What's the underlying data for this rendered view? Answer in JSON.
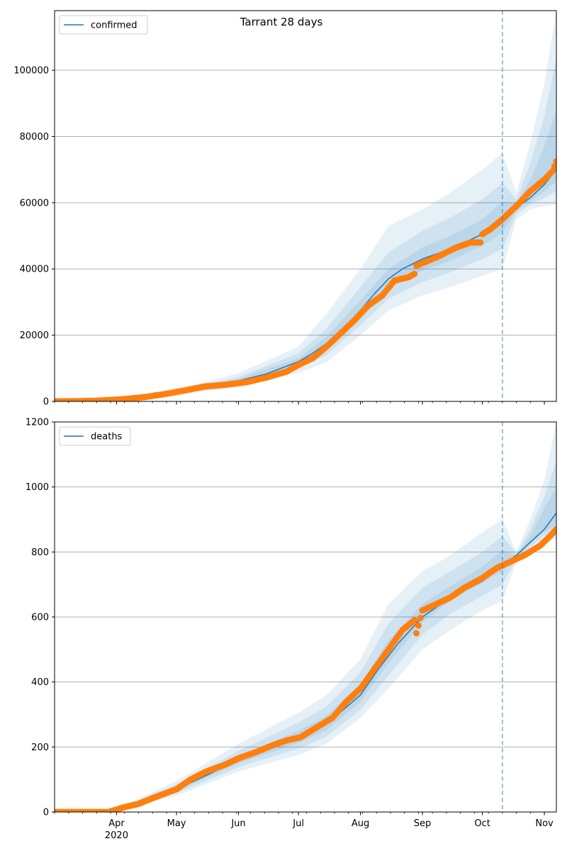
{
  "figure_title": "Tarrant 28 days",
  "chart_data": [
    {
      "type": "line",
      "name": "confirmed-panel",
      "legend": [
        "confirmed"
      ],
      "legend_position": "top-left",
      "grid": "horizontal",
      "ylim": [
        0,
        118000
      ],
      "yticks": [
        0,
        20000,
        40000,
        60000,
        80000,
        100000
      ],
      "xlim": [
        "2020-03-01",
        "2020-11-07"
      ],
      "forecast_start": "2020-10-11",
      "colors": {
        "model": "#1f77b4",
        "observed": "#ff7f0e",
        "band": "#1f77b4"
      },
      "model_line": {
        "name": "confirmed",
        "x": [
          "2020-03-01",
          "2020-03-20",
          "2020-04-01",
          "2020-04-15",
          "2020-05-01",
          "2020-05-15",
          "2020-06-01",
          "2020-06-15",
          "2020-07-01",
          "2020-07-08",
          "2020-07-15",
          "2020-07-22",
          "2020-08-01",
          "2020-08-08",
          "2020-08-15",
          "2020-08-22",
          "2020-09-01",
          "2020-09-15",
          "2020-10-01",
          "2020-10-11",
          "2020-10-18",
          "2020-10-25",
          "2020-11-01",
          "2020-11-07"
        ],
        "y": [
          0,
          100,
          400,
          1200,
          2500,
          4200,
          6200,
          8300,
          12000,
          14500,
          17500,
          21000,
          27500,
          32500,
          37000,
          40000,
          43000,
          46000,
          50500,
          55500,
          58500,
          61500,
          65500,
          70000
        ]
      },
      "observed_points": {
        "x": [
          "2020-03-01",
          "2020-03-10",
          "2020-03-20",
          "2020-03-28",
          "2020-04-05",
          "2020-04-15",
          "2020-04-25",
          "2020-05-05",
          "2020-05-15",
          "2020-05-25",
          "2020-06-05",
          "2020-06-15",
          "2020-06-25",
          "2020-07-01",
          "2020-07-08",
          "2020-07-15",
          "2020-07-22",
          "2020-07-29",
          "2020-08-05",
          "2020-08-12",
          "2020-08-18",
          "2020-08-25",
          "2020-08-28",
          "2020-08-29",
          "2020-09-08",
          "2020-09-18",
          "2020-09-25",
          "2020-09-30",
          "2020-10-01",
          "2020-10-05",
          "2020-10-11",
          "2020-10-18",
          "2020-10-25",
          "2020-11-01",
          "2020-11-05",
          "2020-11-07"
        ],
        "y": [
          0,
          50,
          150,
          400,
          700,
          1300,
          2200,
          3300,
          4500,
          5000,
          5800,
          7200,
          9000,
          11000,
          13000,
          16500,
          20500,
          24500,
          29000,
          32000,
          36500,
          37500,
          38500,
          41000,
          43500,
          46500,
          48000,
          48000,
          50500,
          52000,
          55000,
          59000,
          63500,
          67000,
          69500,
          72500
        ]
      },
      "bands": {
        "x": [
          "2020-03-01",
          "2020-04-01",
          "2020-05-01",
          "2020-06-01",
          "2020-07-01",
          "2020-07-15",
          "2020-08-01",
          "2020-08-15",
          "2020-09-01",
          "2020-09-15",
          "2020-10-01",
          "2020-10-11",
          "2020-10-18",
          "2020-10-25",
          "2020-11-01",
          "2020-11-07"
        ],
        "outer_low": [
          0,
          250,
          1800,
          4400,
          8600,
          11800,
          20000,
          27500,
          32000,
          34500,
          38000,
          40000,
          55000,
          58000,
          59000,
          59500
        ],
        "outer_high": [
          200,
          700,
          3500,
          8500,
          16500,
          26500,
          40000,
          53000,
          58000,
          63000,
          70000,
          75000,
          63000,
          78000,
          96000,
          118000
        ],
        "middle_low": [
          0,
          300,
          2000,
          5100,
          10000,
          14000,
          23000,
          31000,
          36000,
          39000,
          43000,
          46000,
          56500,
          59500,
          61500,
          63500
        ],
        "middle_high": [
          150,
          550,
          3000,
          7400,
          14500,
          22000,
          34500,
          45000,
          51500,
          55500,
          61000,
          66000,
          61000,
          72000,
          86000,
          104000
        ],
        "inner_low": [
          0,
          350,
          2200,
          5700,
          11000,
          16000,
          25500,
          34000,
          39500,
          42500,
          47000,
          51000,
          57500,
          60500,
          63500,
          66500
        ],
        "inner_high": [
          100,
          450,
          2800,
          6800,
          13000,
          19500,
          30500,
          40000,
          46500,
          50000,
          55000,
          60500,
          60000,
          67000,
          77000,
          88000
        ]
      }
    },
    {
      "type": "line",
      "name": "deaths-panel",
      "legend": [
        "deaths"
      ],
      "legend_position": "top-left",
      "grid": "horizontal",
      "ylim": [
        0,
        1200
      ],
      "yticks": [
        0,
        200,
        400,
        600,
        800,
        1000,
        1200
      ],
      "xlim": [
        "2020-03-01",
        "2020-11-07"
      ],
      "xticks": [
        "2020-04-01",
        "2020-05-01",
        "2020-06-01",
        "2020-07-01",
        "2020-08-01",
        "2020-09-01",
        "2020-10-01",
        "2020-11-01"
      ],
      "xtick_labels": [
        "Apr",
        "May",
        "Jun",
        "Jul",
        "Aug",
        "Sep",
        "Oct",
        "Nov"
      ],
      "x_sublabel": "2020",
      "forecast_start": "2020-10-11",
      "colors": {
        "model": "#1f77b4",
        "observed": "#ff7f0e",
        "band": "#1f77b4"
      },
      "model_line": {
        "name": "deaths",
        "x": [
          "2020-03-01",
          "2020-03-28",
          "2020-04-05",
          "2020-04-15",
          "2020-05-01",
          "2020-05-15",
          "2020-06-01",
          "2020-06-15",
          "2020-07-01",
          "2020-07-15",
          "2020-08-01",
          "2020-08-10",
          "2020-08-20",
          "2020-09-01",
          "2020-09-15",
          "2020-10-01",
          "2020-10-11",
          "2020-10-18",
          "2020-10-25",
          "2020-11-01",
          "2020-11-07"
        ],
        "y": [
          0,
          0,
          15,
          40,
          70,
          110,
          160,
          195,
          230,
          270,
          360,
          440,
          520,
          600,
          660,
          710,
          760,
          790,
          830,
          870,
          920
        ]
      },
      "observed_points": {
        "x": [
          "2020-03-01",
          "2020-03-28",
          "2020-04-05",
          "2020-04-12",
          "2020-04-20",
          "2020-05-01",
          "2020-05-08",
          "2020-05-16",
          "2020-05-25",
          "2020-06-01",
          "2020-06-10",
          "2020-06-18",
          "2020-06-25",
          "2020-07-02",
          "2020-07-10",
          "2020-07-18",
          "2020-07-25",
          "2020-08-01",
          "2020-08-08",
          "2020-08-15",
          "2020-08-22",
          "2020-08-28",
          "2020-08-29",
          "2020-09-01",
          "2020-09-08",
          "2020-09-15",
          "2020-09-22",
          "2020-10-01",
          "2020-10-08",
          "2020-10-15",
          "2020-10-22",
          "2020-10-30",
          "2020-11-04",
          "2020-11-07"
        ],
        "y": [
          0,
          0,
          15,
          25,
          45,
          70,
          100,
          125,
          145,
          165,
          185,
          205,
          220,
          230,
          260,
          290,
          340,
          380,
          440,
          500,
          560,
          590,
          550,
          620,
          640,
          660,
          690,
          720,
          750,
          770,
          790,
          820,
          850,
          870
        ]
      },
      "bands": {
        "x": [
          "2020-03-01",
          "2020-04-01",
          "2020-05-01",
          "2020-06-01",
          "2020-07-01",
          "2020-07-15",
          "2020-08-01",
          "2020-08-15",
          "2020-09-01",
          "2020-09-15",
          "2020-10-01",
          "2020-10-11",
          "2020-10-18",
          "2020-10-25",
          "2020-11-01",
          "2020-11-07"
        ],
        "outer_low": [
          0,
          5,
          50,
          125,
          175,
          210,
          290,
          380,
          500,
          560,
          620,
          650,
          770,
          800,
          830,
          840
        ],
        "outer_high": [
          0,
          10,
          95,
          210,
          305,
          360,
          470,
          640,
          740,
          790,
          860,
          900,
          800,
          900,
          1020,
          1200
        ],
        "middle_low": [
          0,
          6,
          58,
          138,
          195,
          232,
          315,
          420,
          545,
          610,
          665,
          700,
          778,
          815,
          850,
          870
        ],
        "middle_high": [
          0,
          9,
          85,
          188,
          275,
          325,
          430,
          580,
          690,
          740,
          800,
          850,
          795,
          870,
          970,
          1080
        ],
        "inner_low": [
          0,
          7,
          65,
          150,
          212,
          252,
          340,
          458,
          585,
          650,
          705,
          740,
          782,
          825,
          862,
          885
        ],
        "inner_high": [
          0,
          8,
          76,
          172,
          250,
          296,
          395,
          528,
          640,
          695,
          755,
          805,
          790,
          850,
          935,
          1000
        ]
      }
    }
  ]
}
